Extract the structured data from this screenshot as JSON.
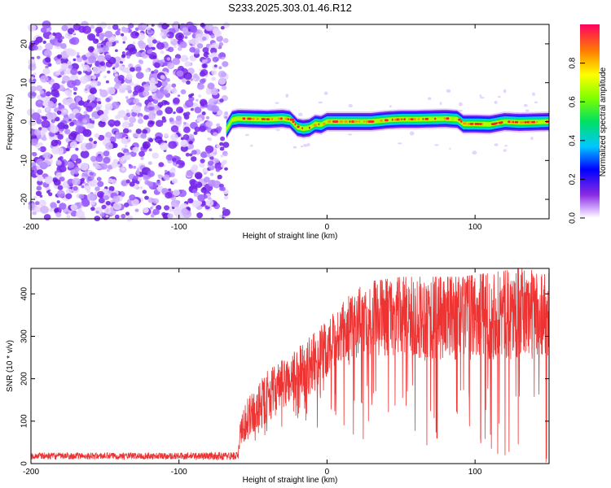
{
  "figure_title": "S233.2025.303.01.46.R12",
  "chart_data": [
    {
      "type": "heatmap",
      "name": "spectrogram",
      "title": "",
      "xlabel": "Height of straight line (km)",
      "ylabel": "Frequency (Hz)",
      "xlim": [
        -200,
        150
      ],
      "ylim": [
        -25,
        25
      ],
      "xticks": [
        -200,
        -100,
        0,
        100
      ],
      "xtick_labels": [
        "-200",
        "-100",
        "0",
        "100"
      ],
      "yticks": [
        -20,
        -10,
        0,
        10,
        20
      ],
      "ytick_labels": [
        "-20",
        "-10",
        "0",
        "10",
        "20"
      ],
      "noise_region_x": [
        -200,
        -68
      ],
      "signal_ridge": {
        "x": [
          -68,
          -64,
          -60,
          -50,
          -40,
          -30,
          -25,
          -20,
          -16,
          -12,
          -8,
          -4,
          0,
          10,
          20,
          30,
          40,
          50,
          60,
          70,
          80,
          88,
          92,
          100,
          110,
          120,
          130,
          140,
          150
        ],
        "freq": [
          -2,
          0.5,
          0.8,
          0.7,
          0.6,
          0.8,
          0.5,
          -1.5,
          -1.8,
          -1.6,
          -0.6,
          -0.8,
          0,
          0,
          0,
          0,
          0.4,
          0.6,
          0.6,
          0.7,
          0.8,
          0.6,
          -0.6,
          -0.6,
          -0.7,
          0,
          -0.2,
          -0.1,
          0
        ]
      },
      "colorbar": {
        "label": "Normalized spectral amplitude",
        "range": [
          0,
          1
        ],
        "ticks": [
          0.0,
          0.2,
          0.4,
          0.6,
          0.8
        ],
        "tick_labels": [
          "0.0",
          "0.2",
          "0.4",
          "0.6",
          "0.8"
        ]
      }
    },
    {
      "type": "line",
      "name": "snr",
      "title": "",
      "xlabel": "Height of straight line (km)",
      "ylabel": "SNR (10 * v/v)",
      "xlim": [
        -200,
        150
      ],
      "ylim": [
        0,
        460
      ],
      "xticks": [
        -200,
        -100,
        0,
        100
      ],
      "xtick_labels": [
        "-200",
        "-100",
        "0",
        "100"
      ],
      "yticks": [
        0,
        100,
        200,
        300,
        400
      ],
      "ytick_labels": [
        "0",
        "100",
        "200",
        "300",
        "400"
      ],
      "color": "#ee3333",
      "series": [
        {
          "name": "SNR envelope",
          "x": [
            -200,
            -150,
            -100,
            -60,
            -58,
            -50,
            -40,
            -30,
            -20,
            -10,
            0,
            10,
            20,
            30,
            50,
            70,
            90,
            110,
            130,
            150
          ],
          "mean": [
            18,
            18,
            18,
            18,
            90,
            120,
            160,
            185,
            210,
            235,
            265,
            300,
            330,
            345,
            350,
            350,
            350,
            355,
            355,
            355
          ],
          "spread": [
            8,
            8,
            8,
            10,
            45,
            50,
            60,
            60,
            65,
            70,
            75,
            80,
            85,
            90,
            100,
            110,
            110,
            110,
            110,
            110
          ],
          "min": [
            0,
            0,
            0,
            0,
            30,
            50,
            60,
            70,
            80,
            80,
            90,
            90,
            60,
            40,
            30,
            10,
            10,
            10,
            0,
            0
          ],
          "max": [
            40,
            40,
            40,
            40,
            150,
            200,
            250,
            280,
            320,
            350,
            400,
            420,
            430,
            430,
            440,
            440,
            440,
            450,
            460,
            460
          ]
        }
      ]
    }
  ]
}
